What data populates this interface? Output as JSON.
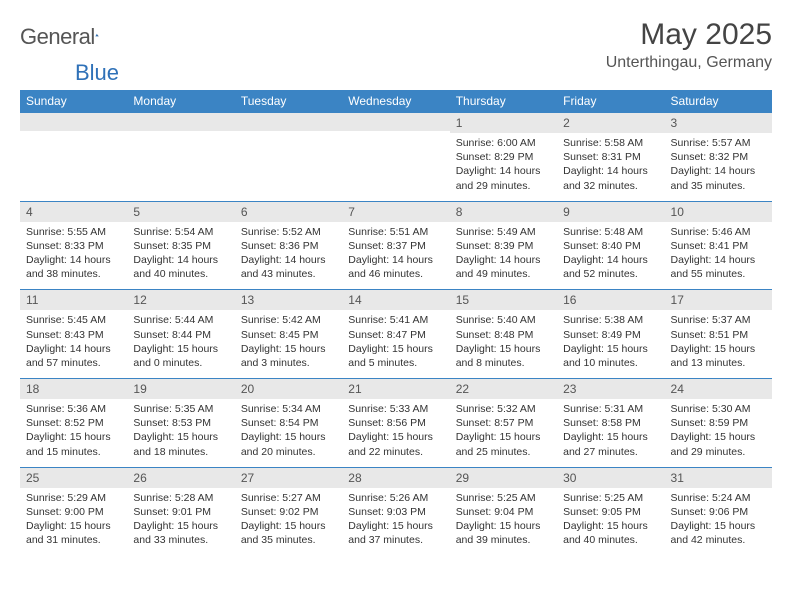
{
  "brand": {
    "name1": "General",
    "name2": "Blue"
  },
  "title": "May 2025",
  "location": "Unterthingau, Germany",
  "colors": {
    "headerBg": "#3b84c4",
    "headerText": "#ffffff",
    "dayNumBg": "#e8e8e8",
    "rowBorder": "#3b84c4",
    "bodyText": "#333333",
    "brandBlue": "#2f71b8"
  },
  "dayNames": [
    "Sunday",
    "Monday",
    "Tuesday",
    "Wednesday",
    "Thursday",
    "Friday",
    "Saturday"
  ],
  "weeks": [
    [
      null,
      null,
      null,
      null,
      {
        "n": "1",
        "sr": "Sunrise: 6:00 AM",
        "ss": "Sunset: 8:29 PM",
        "dl1": "Daylight: 14 hours",
        "dl2": "and 29 minutes."
      },
      {
        "n": "2",
        "sr": "Sunrise: 5:58 AM",
        "ss": "Sunset: 8:31 PM",
        "dl1": "Daylight: 14 hours",
        "dl2": "and 32 minutes."
      },
      {
        "n": "3",
        "sr": "Sunrise: 5:57 AM",
        "ss": "Sunset: 8:32 PM",
        "dl1": "Daylight: 14 hours",
        "dl2": "and 35 minutes."
      }
    ],
    [
      {
        "n": "4",
        "sr": "Sunrise: 5:55 AM",
        "ss": "Sunset: 8:33 PM",
        "dl1": "Daylight: 14 hours",
        "dl2": "and 38 minutes."
      },
      {
        "n": "5",
        "sr": "Sunrise: 5:54 AM",
        "ss": "Sunset: 8:35 PM",
        "dl1": "Daylight: 14 hours",
        "dl2": "and 40 minutes."
      },
      {
        "n": "6",
        "sr": "Sunrise: 5:52 AM",
        "ss": "Sunset: 8:36 PM",
        "dl1": "Daylight: 14 hours",
        "dl2": "and 43 minutes."
      },
      {
        "n": "7",
        "sr": "Sunrise: 5:51 AM",
        "ss": "Sunset: 8:37 PM",
        "dl1": "Daylight: 14 hours",
        "dl2": "and 46 minutes."
      },
      {
        "n": "8",
        "sr": "Sunrise: 5:49 AM",
        "ss": "Sunset: 8:39 PM",
        "dl1": "Daylight: 14 hours",
        "dl2": "and 49 minutes."
      },
      {
        "n": "9",
        "sr": "Sunrise: 5:48 AM",
        "ss": "Sunset: 8:40 PM",
        "dl1": "Daylight: 14 hours",
        "dl2": "and 52 minutes."
      },
      {
        "n": "10",
        "sr": "Sunrise: 5:46 AM",
        "ss": "Sunset: 8:41 PM",
        "dl1": "Daylight: 14 hours",
        "dl2": "and 55 minutes."
      }
    ],
    [
      {
        "n": "11",
        "sr": "Sunrise: 5:45 AM",
        "ss": "Sunset: 8:43 PM",
        "dl1": "Daylight: 14 hours",
        "dl2": "and 57 minutes."
      },
      {
        "n": "12",
        "sr": "Sunrise: 5:44 AM",
        "ss": "Sunset: 8:44 PM",
        "dl1": "Daylight: 15 hours",
        "dl2": "and 0 minutes."
      },
      {
        "n": "13",
        "sr": "Sunrise: 5:42 AM",
        "ss": "Sunset: 8:45 PM",
        "dl1": "Daylight: 15 hours",
        "dl2": "and 3 minutes."
      },
      {
        "n": "14",
        "sr": "Sunrise: 5:41 AM",
        "ss": "Sunset: 8:47 PM",
        "dl1": "Daylight: 15 hours",
        "dl2": "and 5 minutes."
      },
      {
        "n": "15",
        "sr": "Sunrise: 5:40 AM",
        "ss": "Sunset: 8:48 PM",
        "dl1": "Daylight: 15 hours",
        "dl2": "and 8 minutes."
      },
      {
        "n": "16",
        "sr": "Sunrise: 5:38 AM",
        "ss": "Sunset: 8:49 PM",
        "dl1": "Daylight: 15 hours",
        "dl2": "and 10 minutes."
      },
      {
        "n": "17",
        "sr": "Sunrise: 5:37 AM",
        "ss": "Sunset: 8:51 PM",
        "dl1": "Daylight: 15 hours",
        "dl2": "and 13 minutes."
      }
    ],
    [
      {
        "n": "18",
        "sr": "Sunrise: 5:36 AM",
        "ss": "Sunset: 8:52 PM",
        "dl1": "Daylight: 15 hours",
        "dl2": "and 15 minutes."
      },
      {
        "n": "19",
        "sr": "Sunrise: 5:35 AM",
        "ss": "Sunset: 8:53 PM",
        "dl1": "Daylight: 15 hours",
        "dl2": "and 18 minutes."
      },
      {
        "n": "20",
        "sr": "Sunrise: 5:34 AM",
        "ss": "Sunset: 8:54 PM",
        "dl1": "Daylight: 15 hours",
        "dl2": "and 20 minutes."
      },
      {
        "n": "21",
        "sr": "Sunrise: 5:33 AM",
        "ss": "Sunset: 8:56 PM",
        "dl1": "Daylight: 15 hours",
        "dl2": "and 22 minutes."
      },
      {
        "n": "22",
        "sr": "Sunrise: 5:32 AM",
        "ss": "Sunset: 8:57 PM",
        "dl1": "Daylight: 15 hours",
        "dl2": "and 25 minutes."
      },
      {
        "n": "23",
        "sr": "Sunrise: 5:31 AM",
        "ss": "Sunset: 8:58 PM",
        "dl1": "Daylight: 15 hours",
        "dl2": "and 27 minutes."
      },
      {
        "n": "24",
        "sr": "Sunrise: 5:30 AM",
        "ss": "Sunset: 8:59 PM",
        "dl1": "Daylight: 15 hours",
        "dl2": "and 29 minutes."
      }
    ],
    [
      {
        "n": "25",
        "sr": "Sunrise: 5:29 AM",
        "ss": "Sunset: 9:00 PM",
        "dl1": "Daylight: 15 hours",
        "dl2": "and 31 minutes."
      },
      {
        "n": "26",
        "sr": "Sunrise: 5:28 AM",
        "ss": "Sunset: 9:01 PM",
        "dl1": "Daylight: 15 hours",
        "dl2": "and 33 minutes."
      },
      {
        "n": "27",
        "sr": "Sunrise: 5:27 AM",
        "ss": "Sunset: 9:02 PM",
        "dl1": "Daylight: 15 hours",
        "dl2": "and 35 minutes."
      },
      {
        "n": "28",
        "sr": "Sunrise: 5:26 AM",
        "ss": "Sunset: 9:03 PM",
        "dl1": "Daylight: 15 hours",
        "dl2": "and 37 minutes."
      },
      {
        "n": "29",
        "sr": "Sunrise: 5:25 AM",
        "ss": "Sunset: 9:04 PM",
        "dl1": "Daylight: 15 hours",
        "dl2": "and 39 minutes."
      },
      {
        "n": "30",
        "sr": "Sunrise: 5:25 AM",
        "ss": "Sunset: 9:05 PM",
        "dl1": "Daylight: 15 hours",
        "dl2": "and 40 minutes."
      },
      {
        "n": "31",
        "sr": "Sunrise: 5:24 AM",
        "ss": "Sunset: 9:06 PM",
        "dl1": "Daylight: 15 hours",
        "dl2": "and 42 minutes."
      }
    ]
  ]
}
